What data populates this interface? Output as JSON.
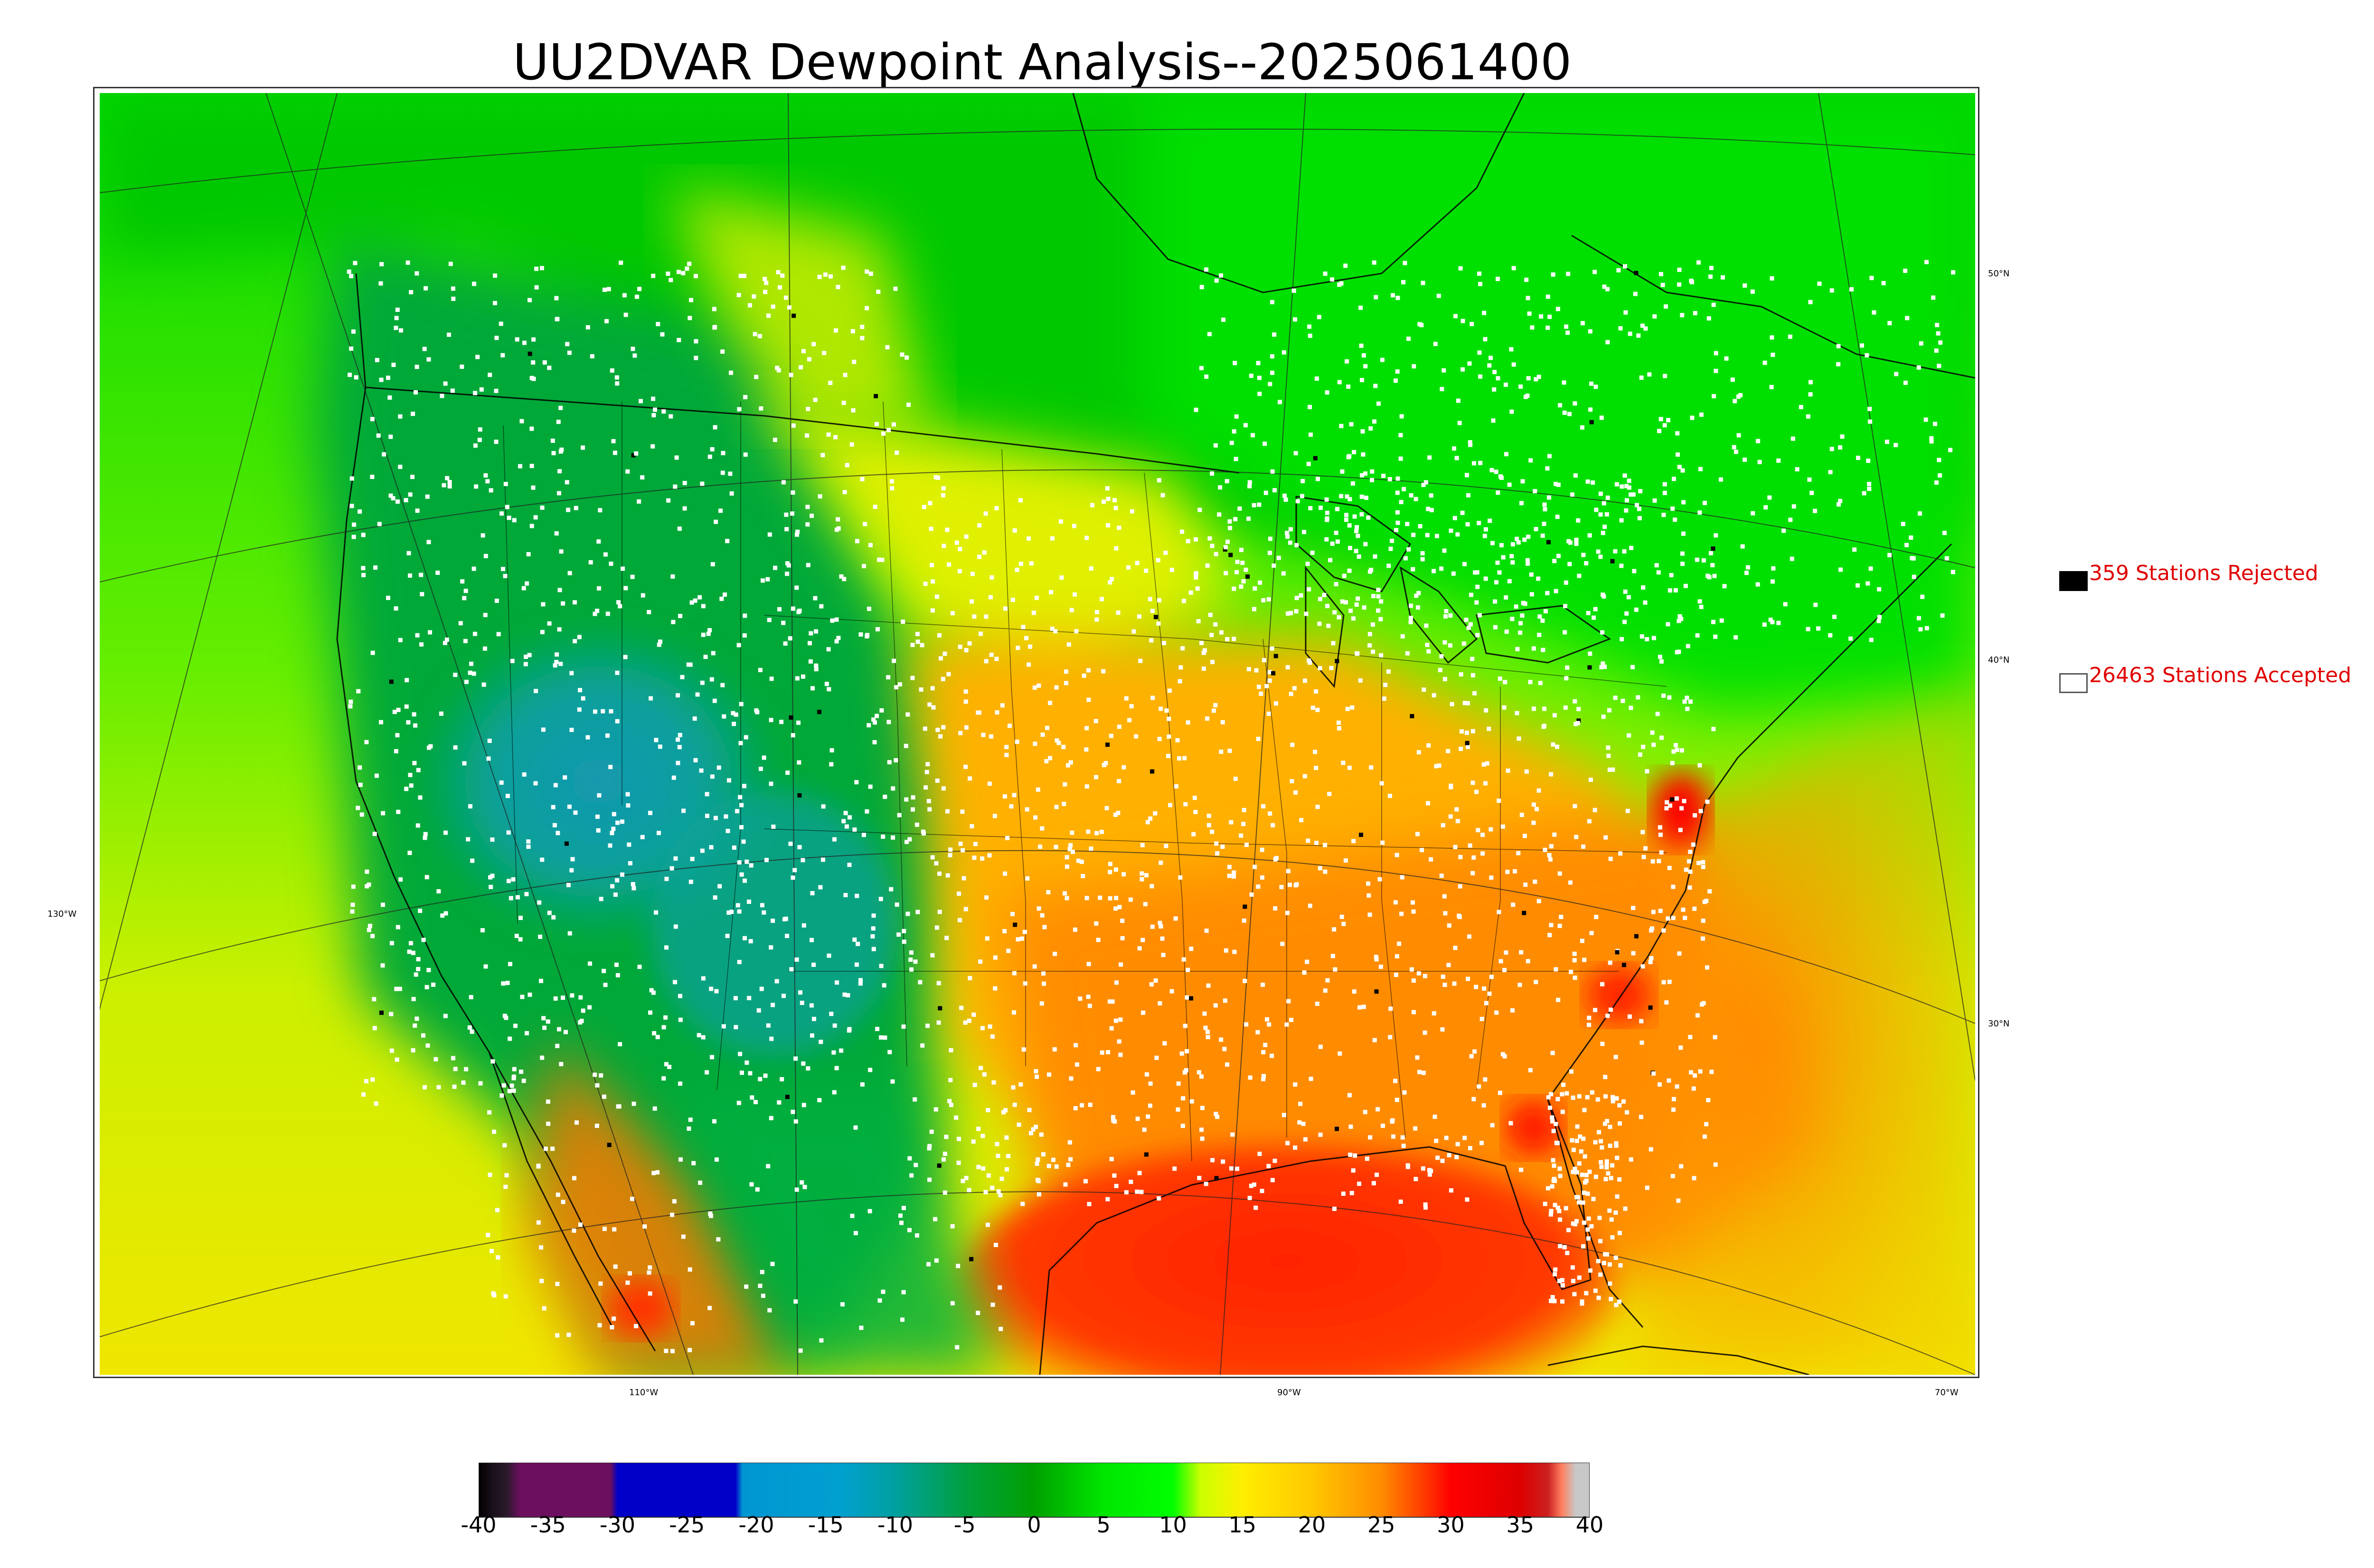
{
  "title": "UU2DVAR Dewpoint Analysis--2025061400",
  "legend": {
    "rejected_label": "359 Stations Rejected",
    "accepted_label": "26463 Stations Accepted",
    "rejected_color": "#000000",
    "accepted_color": "#ffffff",
    "text_color": "#e00000"
  },
  "graticule": {
    "lat_labels": [
      "50°N",
      "40°N",
      "30°N"
    ],
    "lon_labels": [
      "130°W",
      "110°W",
      "90°W",
      "70°W"
    ]
  },
  "colorbar": {
    "min": -40,
    "max": 40,
    "tick_labels": [
      "-40",
      "-35",
      "-30",
      "-25",
      "-20",
      "-15",
      "-10",
      "-5",
      "0",
      "5",
      "10",
      "15",
      "20",
      "25",
      "30",
      "35",
      "40"
    ],
    "stops": [
      {
        "value": -40,
        "color": "#000000"
      },
      {
        "value": -39,
        "color": "#1a0f1a"
      },
      {
        "value": -38,
        "color": "#2a1a2a"
      },
      {
        "value": -37,
        "color": "#6b0f5e"
      },
      {
        "value": -30.5,
        "color": "#6b0f5e"
      },
      {
        "value": -30,
        "color": "#0000c8"
      },
      {
        "value": -21.5,
        "color": "#0000c8"
      },
      {
        "value": -21,
        "color": "#0096d2"
      },
      {
        "value": -14,
        "color": "#00a0d0"
      },
      {
        "value": -10,
        "color": "#00a0a0"
      },
      {
        "value": -5,
        "color": "#00a040"
      },
      {
        "value": 0,
        "color": "#00a000"
      },
      {
        "value": 5,
        "color": "#00e600"
      },
      {
        "value": 10,
        "color": "#00ff00"
      },
      {
        "value": 12,
        "color": "#ccff00"
      },
      {
        "value": 15,
        "color": "#ffee00"
      },
      {
        "value": 20,
        "color": "#ffc800"
      },
      {
        "value": 25,
        "color": "#ff8c00"
      },
      {
        "value": 28,
        "color": "#ff3c00"
      },
      {
        "value": 30,
        "color": "#ff0000"
      },
      {
        "value": 35,
        "color": "#dd0000"
      },
      {
        "value": 37,
        "color": "#cc2020"
      },
      {
        "value": 38,
        "color": "#ff8060"
      },
      {
        "value": 39,
        "color": "#c8c8c8"
      },
      {
        "value": 40,
        "color": "#c8c8c8"
      }
    ]
  },
  "field_colors": {
    "ocean_pacific_north": "#00d000",
    "ocean_pacific_south": "#e6ee00",
    "ocean_gulf": "#ff2a00",
    "ocean_atlantic": "#ff9a00",
    "canada_east": "#00d000",
    "canada_west": "#00e000",
    "great_basin": "#0aa09a",
    "rockies": "#00a040",
    "plains": "#ffcc00",
    "southeast": "#ff9600",
    "mexico_coast": "#ff7000",
    "northern_plains": "#ddf000",
    "coast_red": "#ff0000"
  }
}
